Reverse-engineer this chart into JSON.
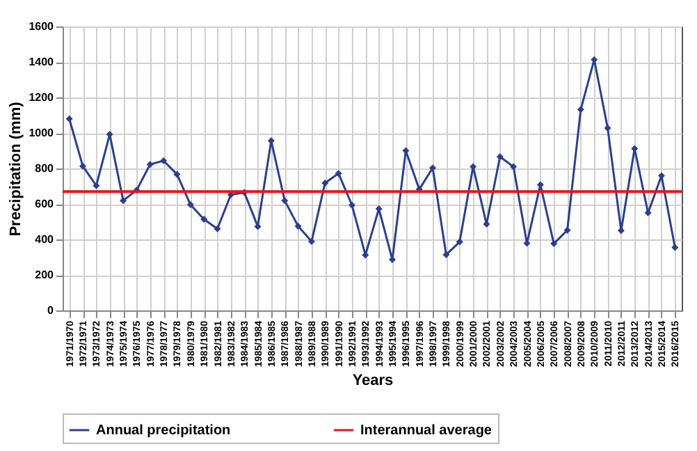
{
  "chart_data": {
    "type": "line",
    "xlabel": "Years",
    "ylabel": "Precipitation (mm)",
    "categories": [
      "1971/1970",
      "1972/1971",
      "1973/1972",
      "1974/1973",
      "1975/1974",
      "1976/1975",
      "1977/1976",
      "1978/1977",
      "1979/1978",
      "1980/1979",
      "1981/1980",
      "1982/1981",
      "1983/1982",
      "1984/1983",
      "1985/1984",
      "1986/1985",
      "1987/1986",
      "1988/1987",
      "1989/1988",
      "1990/1989",
      "1991/1990",
      "1992/1991",
      "1993/1992",
      "1994/1993",
      "1995/1994",
      "1996/1995",
      "1997/1996",
      "1998/1997",
      "1999/1998",
      "2000/1999",
      "2001/2000",
      "2002/2001",
      "2003/2002",
      "2004/2003",
      "2005/2004",
      "2006/2005",
      "2007/2006",
      "2008/2007",
      "2009/2008",
      "2010/2009",
      "2011/2010",
      "2012/2011",
      "2013/2012",
      "2014/2013",
      "2015/2014",
      "2016/2015"
    ],
    "series": [
      {
        "name": "Annual precipitation",
        "color": "#2b3f8f",
        "values": [
          1079,
          813,
          703,
          992,
          619,
          677,
          823,
          843,
          767,
          596,
          514,
          460,
          652,
          665,
          473,
          956,
          619,
          475,
          388,
          718,
          772,
          593,
          312,
          573,
          286,
          900,
          682,
          803,
          314,
          386,
          810,
          486,
          866,
          810,
          378,
          708,
          376,
          452,
          1132,
          1413,
          1027,
          450,
          912,
          550,
          759,
          355
        ]
      }
    ],
    "ref_lines": [
      {
        "axis": "y",
        "value": 670,
        "label": "Interannual average",
        "color": "#e8141b"
      }
    ],
    "ylim": [
      0,
      1600
    ],
    "yticks": [
      0,
      200,
      400,
      600,
      800,
      1000,
      1200,
      1400,
      1600
    ],
    "grid": true,
    "legend": "bottom",
    "marker": "diamond",
    "line_style": "solid"
  }
}
